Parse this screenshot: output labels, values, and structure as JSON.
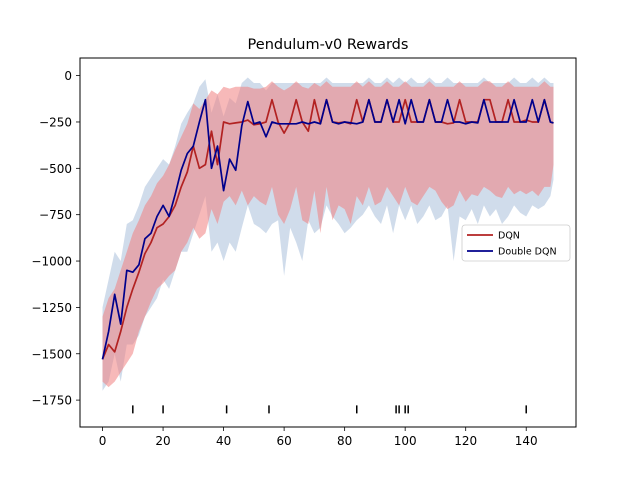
{
  "chart_data": {
    "type": "line",
    "title": "Pendulum-v0 Rewards",
    "xlabel": "",
    "ylabel": "",
    "xlim": [
      -7.45,
      156.45
    ],
    "ylim": [
      -1895,
      95
    ],
    "xticks": [
      0,
      20,
      40,
      60,
      80,
      100,
      120,
      140
    ],
    "yticks": [
      0,
      -250,
      -500,
      -750,
      -1000,
      -1250,
      -1500,
      -1750
    ],
    "ytick_labels": [
      "0",
      "−250",
      "−500",
      "−750",
      "−1000",
      "−1250",
      "−1500",
      "−1750"
    ],
    "xtick_labels": [
      "0",
      "20",
      "40",
      "60",
      "80",
      "100",
      "120",
      "140"
    ],
    "legend_position": "center-right",
    "grid": false,
    "event_markers": {
      "y": -1800,
      "x": [
        10,
        20,
        41,
        55,
        84,
        97,
        98,
        100,
        101,
        140
      ]
    },
    "series": [
      {
        "name": "DQN",
        "color": "#b22222",
        "band_color": "#f08080",
        "band_opacity": 0.55,
        "x": [
          0,
          2,
          4,
          6,
          8,
          10,
          12,
          14,
          16,
          18,
          20,
          22,
          24,
          26,
          28,
          30,
          32,
          34,
          36,
          38,
          40,
          42,
          44,
          46,
          48,
          50,
          52,
          54,
          56,
          58,
          60,
          62,
          64,
          66,
          68,
          70,
          72,
          74,
          76,
          78,
          80,
          82,
          84,
          86,
          88,
          90,
          92,
          94,
          96,
          98,
          100,
          102,
          104,
          106,
          108,
          110,
          112,
          114,
          116,
          118,
          120,
          122,
          124,
          126,
          128,
          130,
          132,
          134,
          136,
          138,
          140,
          142,
          144,
          146,
          148,
          149
        ],
        "mean": [
          -1530,
          -1450,
          -1490,
          -1380,
          -1250,
          -1150,
          -1060,
          -960,
          -900,
          -820,
          -800,
          -760,
          -700,
          -600,
          -520,
          -380,
          -500,
          -480,
          -300,
          -480,
          -250,
          -260,
          -255,
          -250,
          -240,
          -265,
          -260,
          -250,
          -130,
          -250,
          -310,
          -250,
          -130,
          -250,
          -300,
          -130,
          -260,
          -130,
          -250,
          -255,
          -250,
          -260,
          -130,
          -250,
          -130,
          -250,
          -250,
          -130,
          -250,
          -250,
          -130,
          -250,
          -250,
          -250,
          -130,
          -250,
          -250,
          -260,
          -255,
          -130,
          -250,
          -250,
          -250,
          -130,
          -130,
          -250,
          -250,
          -130,
          -250,
          -250,
          -240,
          -250,
          -250,
          -130,
          -250,
          -255
        ],
        "upper": [
          -1300,
          -1200,
          -1150,
          -1050,
          -950,
          -850,
          -780,
          -700,
          -650,
          -580,
          -540,
          -480,
          -400,
          -330,
          -260,
          -150,
          -180,
          -130,
          -80,
          -100,
          -60,
          -70,
          -60,
          -60,
          -60,
          -70,
          -70,
          -60,
          -30,
          -60,
          -80,
          -60,
          -30,
          -60,
          -70,
          -40,
          -60,
          -30,
          -60,
          -60,
          -60,
          -60,
          -30,
          -60,
          -30,
          -60,
          -60,
          -30,
          -60,
          -60,
          -30,
          -60,
          -60,
          -60,
          -30,
          -60,
          -60,
          -60,
          -60,
          -30,
          -60,
          -60,
          -60,
          -30,
          -30,
          -60,
          -60,
          -30,
          -60,
          -60,
          -60,
          -60,
          -60,
          -30,
          -60,
          -60
        ],
        "lower": [
          -1650,
          -1680,
          -1650,
          -1600,
          -1550,
          -1500,
          -1380,
          -1300,
          -1220,
          -1150,
          -1120,
          -1080,
          -1050,
          -950,
          -900,
          -820,
          -880,
          -850,
          -720,
          -800,
          -680,
          -650,
          -700,
          -620,
          -700,
          -650,
          -680,
          -700,
          -600,
          -750,
          -800,
          -720,
          -600,
          -780,
          -800,
          -620,
          -850,
          -600,
          -780,
          -700,
          -720,
          -800,
          -650,
          -700,
          -600,
          -700,
          -680,
          -600,
          -650,
          -700,
          -600,
          -680,
          -700,
          -650,
          -600,
          -620,
          -680,
          -720,
          -700,
          -620,
          -680,
          -640,
          -650,
          -600,
          -620,
          -650,
          -660,
          -600,
          -640,
          -620,
          -640,
          -620,
          -650,
          -600,
          -600,
          -480
        ]
      },
      {
        "name": "Double DQN",
        "color": "#00008b",
        "band_color": "#b0c4de",
        "band_opacity": 0.6,
        "x": [
          0,
          2,
          4,
          6,
          8,
          10,
          12,
          14,
          16,
          18,
          20,
          22,
          24,
          26,
          28,
          30,
          32,
          34,
          36,
          38,
          40,
          42,
          44,
          46,
          48,
          50,
          52,
          54,
          56,
          58,
          60,
          62,
          64,
          66,
          68,
          70,
          72,
          74,
          76,
          78,
          80,
          82,
          84,
          86,
          88,
          90,
          92,
          94,
          96,
          98,
          100,
          102,
          104,
          106,
          108,
          110,
          112,
          114,
          116,
          118,
          120,
          122,
          124,
          126,
          128,
          130,
          132,
          134,
          136,
          138,
          140,
          142,
          144,
          146,
          148,
          149
        ],
        "mean": [
          -1530,
          -1380,
          -1180,
          -1340,
          -1050,
          -1060,
          -1020,
          -880,
          -850,
          -760,
          -700,
          -760,
          -640,
          -510,
          -420,
          -380,
          -250,
          -130,
          -500,
          -380,
          -620,
          -450,
          -510,
          -270,
          -140,
          -260,
          -250,
          -330,
          -250,
          -260,
          -260,
          -260,
          -260,
          -250,
          -260,
          -250,
          -260,
          -130,
          -250,
          -260,
          -250,
          -255,
          -260,
          -250,
          -130,
          -250,
          -250,
          -130,
          -250,
          -130,
          -260,
          -130,
          -250,
          -250,
          -130,
          -250,
          -250,
          -130,
          -250,
          -250,
          -260,
          -250,
          -255,
          -130,
          -250,
          -250,
          -250,
          -250,
          -130,
          -250,
          -250,
          -130,
          -250,
          -130,
          -250,
          -255
        ],
        "upper": [
          -1250,
          -1100,
          -950,
          -1000,
          -800,
          -780,
          -700,
          -600,
          -550,
          -500,
          -450,
          -480,
          -380,
          -260,
          -200,
          -150,
          -60,
          -20,
          -200,
          -100,
          -220,
          -120,
          -150,
          -40,
          -10,
          -40,
          -40,
          -80,
          -40,
          -40,
          -40,
          -40,
          -40,
          -40,
          -40,
          -40,
          -40,
          -10,
          -40,
          -40,
          -40,
          -40,
          -40,
          -40,
          -10,
          -40,
          -40,
          -10,
          -40,
          -10,
          -40,
          -10,
          -40,
          -40,
          -10,
          -40,
          -40,
          -10,
          -40,
          -40,
          -40,
          -40,
          -40,
          -10,
          -40,
          -40,
          -40,
          -40,
          -10,
          -40,
          -40,
          -10,
          -40,
          -10,
          -40,
          -40
        ],
        "lower": [
          -1700,
          -1650,
          -1500,
          -1650,
          -1450,
          -1450,
          -1400,
          -1300,
          -1250,
          -1200,
          -1100,
          -1150,
          -1050,
          -950,
          -950,
          -850,
          -750,
          -650,
          -950,
          -900,
          -1000,
          -900,
          -950,
          -820,
          -700,
          -800,
          -820,
          -850,
          -800,
          -780,
          -1080,
          -820,
          -900,
          -1000,
          -780,
          -850,
          -820,
          -700,
          -760,
          -800,
          -850,
          -820,
          -780,
          -750,
          -700,
          -760,
          -800,
          -700,
          -850,
          -700,
          -780,
          -700,
          -800,
          -760,
          -700,
          -780,
          -760,
          -700,
          -1000,
          -760,
          -780,
          -720,
          -800,
          -700,
          -760,
          -720,
          -800,
          -760,
          -700,
          -740,
          -760,
          -700,
          -720,
          -700,
          -650,
          -560
        ]
      }
    ]
  }
}
